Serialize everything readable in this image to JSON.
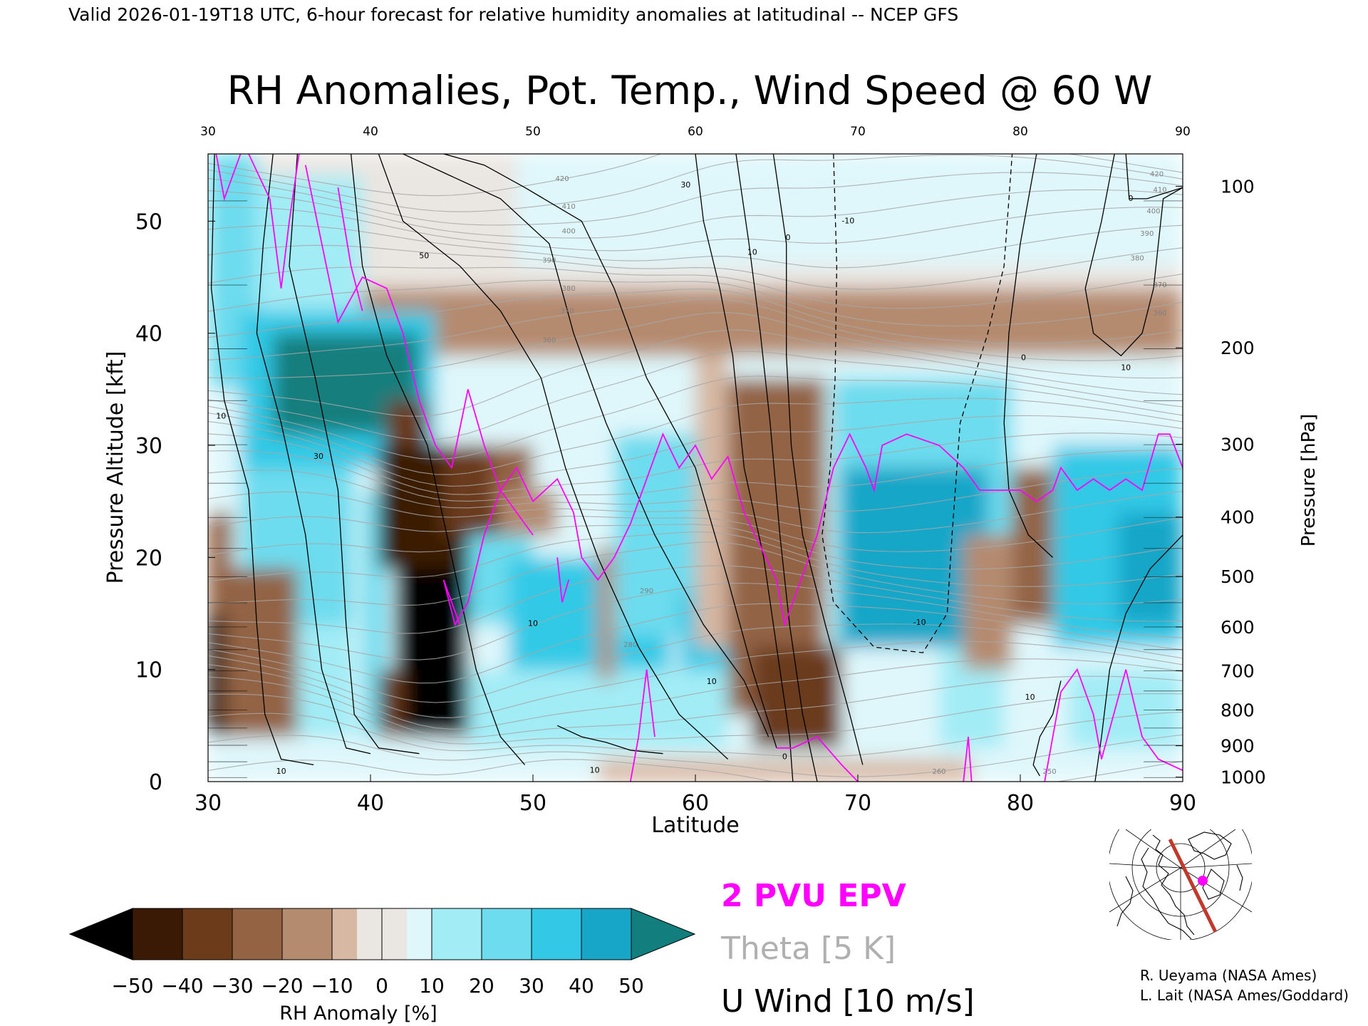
{
  "header": {
    "valid_line": "Valid 2026-01-19T18 UTC, 6-hour forecast for relative humidity anomalies at latitudinal -- NCEP GFS"
  },
  "chart_data": {
    "type": "heatmap",
    "title": "RH Anomalies, Pot. Temp., Wind Speed @ 60 W",
    "xlabel": "Latitude",
    "ylabel_left": "Pressure Altitude [kft]",
    "ylabel_right": "Pressure [hPa]",
    "xlim": [
      30,
      90
    ],
    "ylim": [
      0,
      56
    ],
    "x_ticks": [
      30,
      40,
      50,
      60,
      70,
      80,
      90
    ],
    "top_x_ticks": [
      "30",
      "40",
      "50",
      "60",
      "70",
      "80",
      "90"
    ],
    "y_ticks": [
      0,
      10,
      20,
      30,
      40,
      50
    ],
    "right_ticks": [
      {
        "label": "100",
        "kft": 53.1
      },
      {
        "label": "200",
        "kft": 38.7
      },
      {
        "label": "300",
        "kft": 30.1
      },
      {
        "label": "400",
        "kft": 23.6
      },
      {
        "label": "500",
        "kft": 18.3
      },
      {
        "label": "600",
        "kft": 13.8
      },
      {
        "label": "700",
        "kft": 9.9
      },
      {
        "label": "800",
        "kft": 6.4
      },
      {
        "label": "900",
        "kft": 3.2
      },
      {
        "label": "1000",
        "kft": 0.4
      }
    ],
    "theta_labels": [
      {
        "text": "420",
        "lat": 51.8,
        "kft": 53.6
      },
      {
        "text": "410",
        "lat": 52.2,
        "kft": 51.1
      },
      {
        "text": "400",
        "lat": 52.2,
        "kft": 48.9
      },
      {
        "text": "390",
        "lat": 51.0,
        "kft": 46.3
      },
      {
        "text": "380",
        "lat": 52.2,
        "kft": 43.8
      },
      {
        "text": "370",
        "lat": 52.1,
        "kft": 41.8
      },
      {
        "text": "360",
        "lat": 51.0,
        "kft": 39.2
      },
      {
        "text": "290",
        "lat": 57.0,
        "kft": 16.8
      },
      {
        "text": "280",
        "lat": 56.0,
        "kft": 12.0
      },
      {
        "text": "260",
        "lat": 75.0,
        "kft": 0.7
      },
      {
        "text": "250",
        "lat": 81.8,
        "kft": 0.7
      },
      {
        "text": "420",
        "lat": 88.4,
        "kft": 54.0
      },
      {
        "text": "410",
        "lat": 88.6,
        "kft": 52.6
      },
      {
        "text": "400",
        "lat": 88.2,
        "kft": 50.7
      },
      {
        "text": "390",
        "lat": 87.8,
        "kft": 48.7
      },
      {
        "text": "380",
        "lat": 87.2,
        "kft": 46.5
      },
      {
        "text": "370",
        "lat": 88.6,
        "kft": 44.1
      },
      {
        "text": "360",
        "lat": 88.6,
        "kft": 41.6
      }
    ],
    "wind_labels": [
      {
        "text": "50",
        "lat": 43.3,
        "kft": 46.7
      },
      {
        "text": "30",
        "lat": 59.4,
        "kft": 53.0
      },
      {
        "text": "10",
        "lat": 63.5,
        "kft": 47.0
      },
      {
        "text": "0",
        "lat": 65.7,
        "kft": 48.3
      },
      {
        "text": "-10",
        "lat": 69.4,
        "kft": 49.8
      },
      {
        "text": "10",
        "lat": 30.8,
        "kft": 32.4
      },
      {
        "text": "30",
        "lat": 36.8,
        "kft": 28.8
      },
      {
        "text": "10",
        "lat": 50.0,
        "kft": 13.9
      },
      {
        "text": "10",
        "lat": 61.0,
        "kft": 8.7
      },
      {
        "text": "-10",
        "lat": 73.8,
        "kft": 14.0
      },
      {
        "text": "0",
        "lat": 80.2,
        "kft": 37.6
      },
      {
        "text": "10",
        "lat": 86.5,
        "kft": 36.7
      },
      {
        "text": "0",
        "lat": 86.8,
        "kft": 51.8
      },
      {
        "text": "10",
        "lat": 34.5,
        "kft": 0.7
      },
      {
        "text": "10",
        "lat": 53.8,
        "kft": 0.8
      },
      {
        "text": "10",
        "lat": 80.6,
        "kft": 7.3
      },
      {
        "text": "0",
        "lat": 65.5,
        "kft": 2.0
      }
    ],
    "rh_fields": [
      {
        "lat": 30.0,
        "kft": 56.0,
        "dlat": 60.0,
        "dkft": 56.0,
        "rh": 3
      },
      {
        "lat": 30.0,
        "kft": 56.0,
        "dlat": 60.0,
        "dkft": 12.0,
        "rh": -5
      },
      {
        "lat": 49.0,
        "kft": 56.0,
        "dlat": 27.0,
        "dkft": 10.0,
        "rh": 2
      },
      {
        "lat": 76.0,
        "kft": 56.0,
        "dlat": 14.0,
        "dkft": 10.0,
        "rh": 3
      },
      {
        "lat": 30.0,
        "kft": 44.0,
        "dlat": 60.0,
        "dkft": 6.0,
        "rh": -12
      },
      {
        "lat": 30.0,
        "kft": 56.0,
        "dlat": 3.0,
        "dkft": 21.0,
        "rh": 20
      },
      {
        "lat": 33.0,
        "kft": 54.0,
        "dlat": 1.5,
        "dkft": 15.0,
        "rh": 12
      },
      {
        "lat": 34.5,
        "kft": 54.0,
        "dlat": 5.0,
        "dkft": 12.0,
        "rh": 15
      },
      {
        "lat": 32.0,
        "kft": 42.0,
        "dlat": 12.0,
        "dkft": 14.0,
        "rh": 35
      },
      {
        "lat": 34.0,
        "kft": 40.0,
        "dlat": 9.0,
        "dkft": 9.0,
        "rh": 55
      },
      {
        "lat": 32.0,
        "kft": 28.0,
        "dlat": 7.0,
        "dkft": 14.0,
        "rh": 28
      },
      {
        "lat": 34.0,
        "kft": 14.0,
        "dlat": 5.0,
        "dkft": 10.0,
        "rh": 12
      },
      {
        "lat": 30.0,
        "kft": 24.0,
        "dlat": 1.5,
        "dkft": 20.0,
        "rh": -30
      },
      {
        "lat": 30.0,
        "kft": 19.0,
        "dlat": 5.5,
        "dkft": 15.0,
        "rh": -25
      },
      {
        "lat": 30.0,
        "kft": 15.0,
        "dlat": 1.0,
        "dkft": 11.0,
        "rh": -55
      },
      {
        "lat": 39.5,
        "kft": 26.0,
        "dlat": 1.5,
        "dkft": 22.0,
        "rh": 20
      },
      {
        "lat": 41.0,
        "kft": 34.0,
        "dlat": 2.5,
        "dkft": 5.0,
        "rh": -40
      },
      {
        "lat": 40.5,
        "kft": 30.0,
        "dlat": 6.5,
        "dkft": 11.0,
        "rh": -50
      },
      {
        "lat": 41.5,
        "kft": 19.0,
        "dlat": 4.5,
        "dkft": 15.0,
        "rh": -55
      },
      {
        "lat": 40.5,
        "kft": 10.0,
        "dlat": 1.5,
        "dkft": 6.0,
        "rh": -40
      },
      {
        "lat": 44.5,
        "kft": 30.0,
        "dlat": 4.0,
        "dkft": 8.0,
        "rh": -35
      },
      {
        "lat": 47.5,
        "kft": 30.0,
        "dlat": 2.5,
        "dkft": 5.0,
        "rh": -25
      },
      {
        "lat": 48.0,
        "kft": 26.0,
        "dlat": 3.5,
        "dkft": 4.0,
        "rh": -20
      },
      {
        "lat": 46.0,
        "kft": 22.0,
        "dlat": 4.0,
        "dkft": 8.0,
        "rh": 22
      },
      {
        "lat": 48.5,
        "kft": 20.0,
        "dlat": 10.0,
        "dkft": 15.0,
        "rh": 30
      },
      {
        "lat": 55.0,
        "kft": 31.0,
        "dlat": 7.0,
        "dkft": 18.0,
        "rh": 25
      },
      {
        "lat": 59.0,
        "kft": 17.0,
        "dlat": 4.0,
        "dkft": 11.0,
        "rh": 35
      },
      {
        "lat": 46.0,
        "kft": 10.0,
        "dlat": 16.0,
        "dkft": 9.0,
        "rh": 12
      },
      {
        "lat": 54.0,
        "kft": 21.0,
        "dlat": 1.0,
        "dkft": 12.0,
        "rh": -12
      },
      {
        "lat": 60.0,
        "kft": 38.0,
        "dlat": 2.0,
        "dkft": 26.0,
        "rh": -10
      },
      {
        "lat": 62.0,
        "kft": 36.0,
        "dlat": 6.0,
        "dkft": 30.0,
        "rh": -25
      },
      {
        "lat": 63.5,
        "kft": 12.0,
        "dlat": 5.5,
        "dkft": 9.0,
        "rh": -35
      },
      {
        "lat": 68.5,
        "kft": 36.0,
        "dlat": 11.0,
        "dkft": 24.0,
        "rh": 25
      },
      {
        "lat": 69.0,
        "kft": 28.0,
        "dlat": 9.0,
        "dkft": 16.0,
        "rh": 40
      },
      {
        "lat": 75.0,
        "kft": 12.0,
        "dlat": 4.0,
        "dkft": 9.0,
        "rh": 10
      },
      {
        "lat": 79.5,
        "kft": 28.0,
        "dlat": 2.5,
        "dkft": 14.0,
        "rh": -30
      },
      {
        "lat": 76.5,
        "kft": 22.0,
        "dlat": 3.0,
        "dkft": 12.0,
        "rh": -15
      },
      {
        "lat": 82.0,
        "kft": 30.0,
        "dlat": 8.0,
        "dkft": 18.0,
        "rh": 30
      },
      {
        "lat": 86.0,
        "kft": 24.0,
        "dlat": 4.0,
        "dkft": 10.0,
        "rh": 40
      },
      {
        "lat": 83.0,
        "kft": 10.0,
        "dlat": 7.0,
        "dkft": 7.0,
        "rh": 12
      },
      {
        "lat": 30.0,
        "kft": 3.0,
        "dlat": 60.0,
        "dkft": 3.0,
        "rh": 8
      },
      {
        "lat": 54.0,
        "kft": 2.0,
        "dlat": 23.0,
        "dkft": 2.0,
        "rh": -8
      }
    ],
    "colorbar": {
      "label": "RH Anomaly [%]",
      "min": -50,
      "max": 50,
      "ticks": [
        "−50",
        "−40",
        "−30",
        "−20",
        "−10",
        "0",
        "10",
        "20",
        "30",
        "40",
        "50"
      ],
      "colors": [
        "#000000",
        "#3a1a04",
        "#6b3b1a",
        "#936344",
        "#b58b70",
        "#d6b8a3",
        "#eae6e1",
        "#dff7fb",
        "#a2ecf6",
        "#6ddcee",
        "#33c9e6",
        "#17a6c8",
        "#0e8ca6",
        "#127e7d"
      ]
    },
    "legend": [
      {
        "label": "2 PVU EPV",
        "color": "#ff00ff"
      },
      {
        "label": "Theta [5 K]",
        "color": "#b0b0b0"
      },
      {
        "label": "U Wind [10 m/s]",
        "color": "#000000"
      }
    ],
    "series_colors": {
      "epv": "#ff00ff",
      "theta": "#a7a7a7",
      "wind": "#000000"
    }
  },
  "inset_map": {
    "section_color": "#c0392b",
    "point_color": "#ff00ff"
  },
  "credits": {
    "line1": "R. Ueyama (NASA Ames)",
    "line2": "L. Lait (NASA Ames/Goddard)"
  }
}
